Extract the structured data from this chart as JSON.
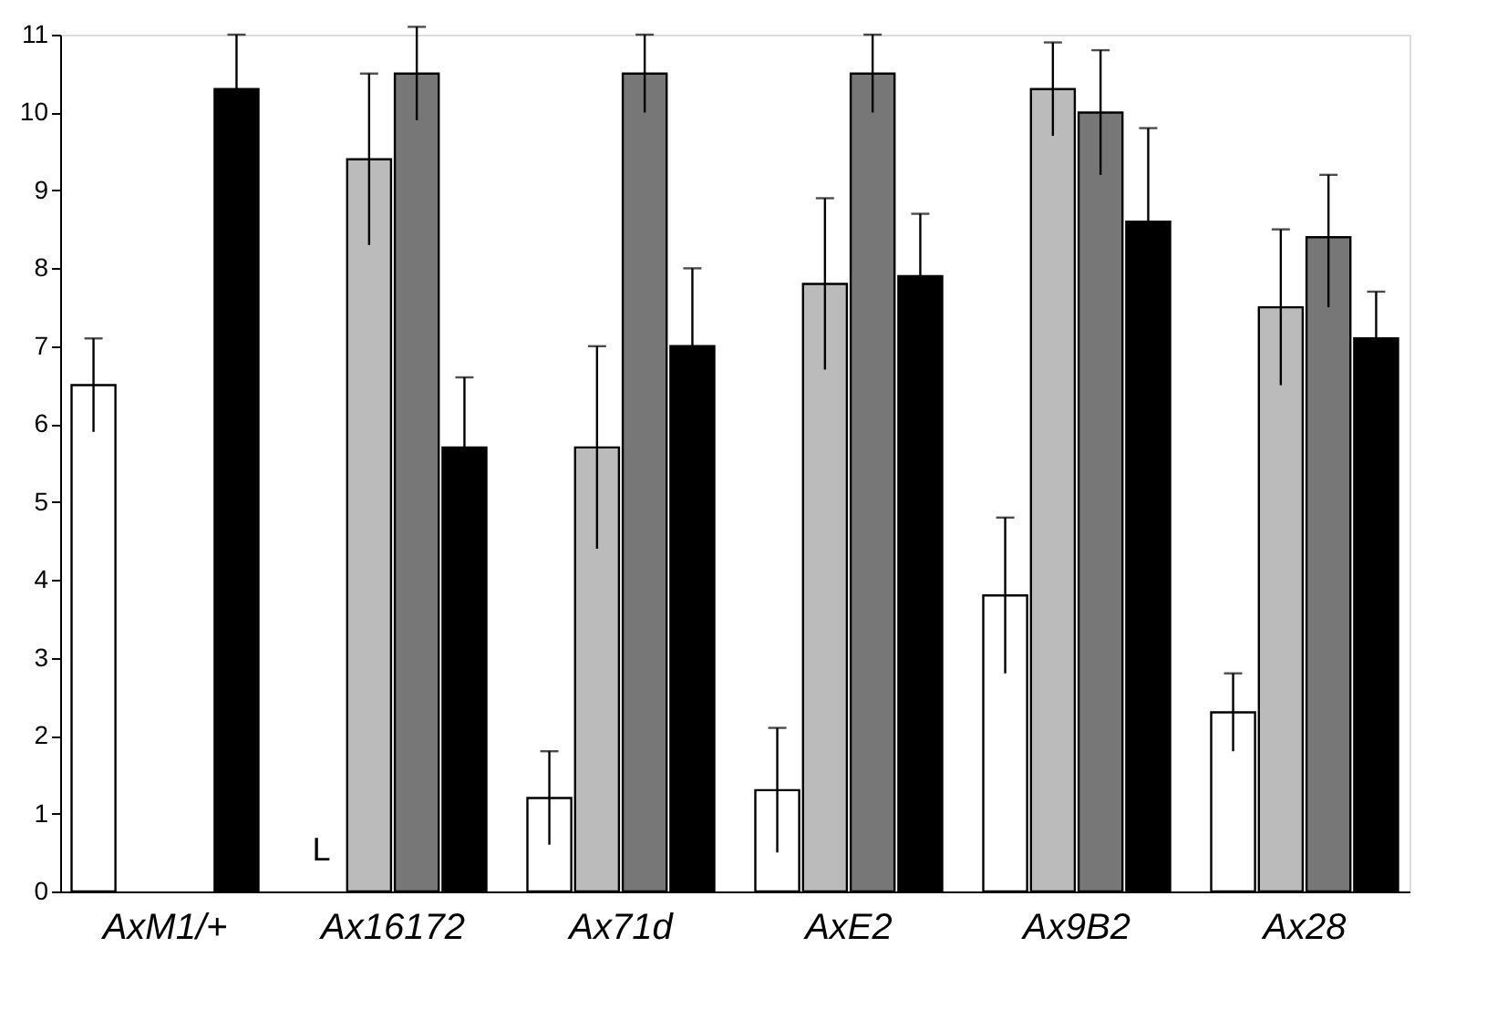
{
  "chart_data": {
    "type": "bar",
    "categories": [
      "AxM1/+",
      "Ax16172",
      "Ax71d",
      "AxE2",
      "Ax9B2",
      "Ax28"
    ],
    "series": [
      {
        "color": "#ffffff",
        "values": [
          6.5,
          null,
          1.2,
          1.3,
          3.8,
          2.3
        ],
        "errors": [
          [
            5.9,
            7.1
          ],
          null,
          [
            0.6,
            1.8
          ],
          [
            0.5,
            2.1
          ],
          [
            2.8,
            4.8
          ],
          [
            1.8,
            2.8
          ]
        ]
      },
      {
        "color": "#bbbbbb",
        "values": [
          null,
          9.4,
          5.7,
          7.8,
          10.3,
          7.5
        ],
        "errors": [
          null,
          [
            8.3,
            10.5
          ],
          [
            4.4,
            7.0
          ],
          [
            6.7,
            8.9
          ],
          [
            9.7,
            10.9
          ],
          [
            6.5,
            8.5
          ]
        ]
      },
      {
        "color": "#777777",
        "values": [
          null,
          10.5,
          10.5,
          10.5,
          10.0,
          8.4
        ],
        "errors": [
          null,
          [
            9.9,
            11.1
          ],
          [
            10.0,
            11.0
          ],
          [
            10.0,
            11.0
          ],
          [
            9.2,
            10.8
          ],
          [
            7.5,
            9.2
          ]
        ]
      },
      {
        "color": "#000000",
        "values": [
          10.3,
          5.7,
          7.0,
          7.9,
          8.6,
          7.1
        ],
        "errors": [
          [
            10.3,
            11.0
          ],
          [
            5.7,
            6.6
          ],
          [
            7.0,
            8.0
          ],
          [
            7.9,
            8.7
          ],
          [
            8.6,
            9.8
          ],
          [
            7.1,
            7.7
          ]
        ]
      }
    ],
    "ylim": [
      0,
      11
    ],
    "yticks": [
      0,
      1,
      2,
      3,
      4,
      5,
      6,
      7,
      8,
      9,
      10,
      11
    ],
    "grid": false,
    "legend": false,
    "annotations": [
      {
        "text": "L",
        "x": "Ax16172",
        "y": 0.3
      }
    ]
  }
}
